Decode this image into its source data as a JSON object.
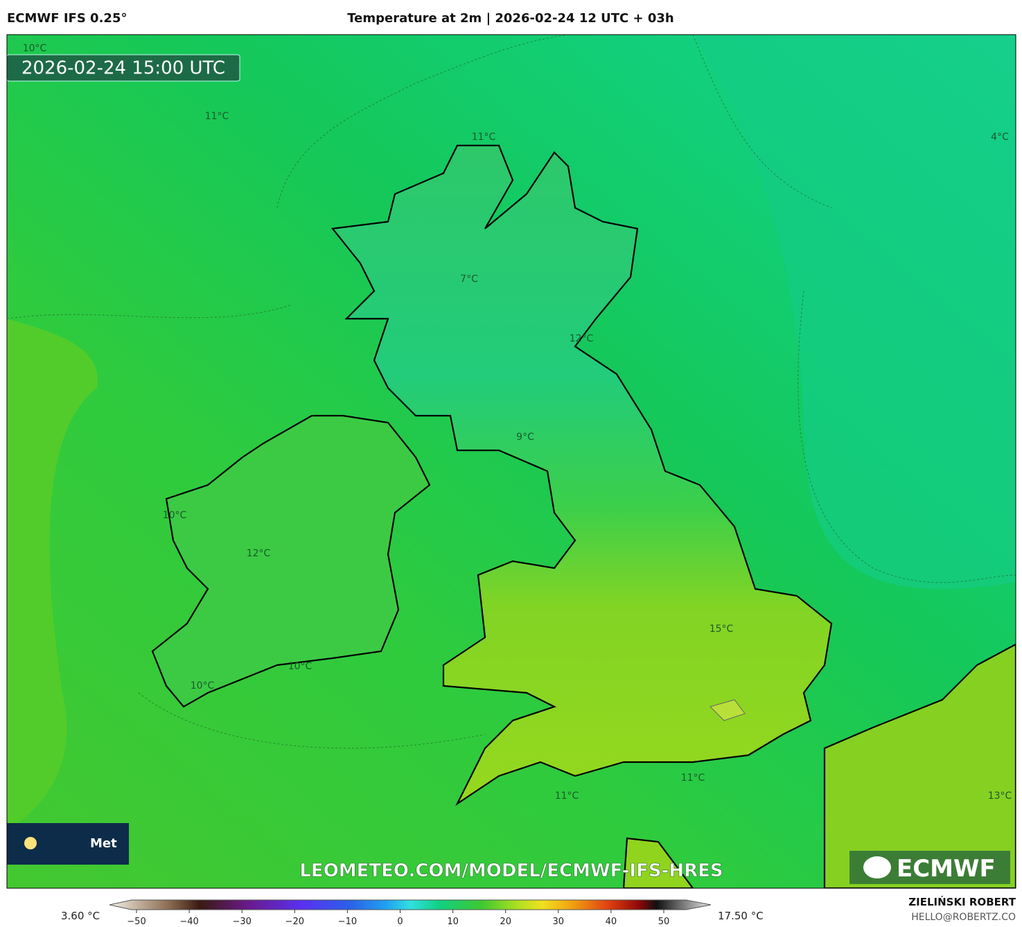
{
  "header": {
    "model": "ECMWF IFS 0.25°",
    "title": "Temperature at 2m | 2026-02-24 12 UTC + 03h"
  },
  "map": {
    "timestamp": "2026-02-24 15:00 UTC",
    "labels": [
      "10°C",
      "11°C",
      "11°C",
      "4°C",
      "7°C",
      "12°C",
      "9°C",
      "10°C",
      "12°C",
      "15°C",
      "10°C",
      "10°C",
      "11°C",
      "11°C",
      "13°C"
    ],
    "badge": "Met",
    "watermark": "LEOMETEO.COM/MODEL/ECMWF-IFS-HRES",
    "logo": "ECMWF"
  },
  "colorbar": {
    "min_label": "3.60 °C",
    "max_label": "17.50 °C",
    "ticks": [
      "−50",
      "−40",
      "−30",
      "−20",
      "−10",
      "0",
      "10",
      "20",
      "30",
      "40",
      "50"
    ]
  },
  "footer": {
    "author": "ZIELIŃSKI ROBERT",
    "email": "HELLO@ROBERTZ.CO"
  }
}
